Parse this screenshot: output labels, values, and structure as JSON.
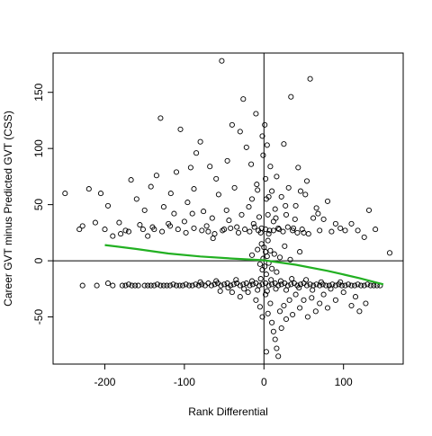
{
  "chart_data": {
    "type": "scatter",
    "title": "",
    "xlabel": "Rank Differential",
    "ylabel": "Career GVT minus Predicted GVT (CSS)",
    "xlim": [
      -265,
      175
    ],
    "ylim": [
      -92,
      185
    ],
    "xticks": [
      -200,
      -100,
      0,
      100
    ],
    "yticks": [
      -50,
      0,
      50,
      100,
      150
    ],
    "xtick_labels": [
      "-200",
      "-100",
      "0",
      "100"
    ],
    "ytick_labels": [
      "-50",
      "0",
      "50",
      "100",
      "150"
    ],
    "reference_lines": {
      "x": 0,
      "y": 0
    },
    "grid": false,
    "legend": "none",
    "point_style": "open circle",
    "point_color": "#000000",
    "trend_color": "#22b022",
    "series": [
      {
        "type": "scatter",
        "points": [
          [
            -250,
            60
          ],
          [
            -232,
            28
          ],
          [
            -228,
            31
          ],
          [
            -220,
            64
          ],
          [
            -212,
            34
          ],
          [
            -205,
            60
          ],
          [
            -200,
            28
          ],
          [
            -196,
            49
          ],
          [
            -190,
            22
          ],
          [
            -182,
            34
          ],
          [
            -174,
            27
          ],
          [
            -167,
            72
          ],
          [
            -160,
            55
          ],
          [
            -156,
            32
          ],
          [
            -150,
            45
          ],
          [
            -146,
            22
          ],
          [
            -142,
            66
          ],
          [
            -138,
            28
          ],
          [
            -135,
            76
          ],
          [
            -130,
            127
          ],
          [
            -126,
            48
          ],
          [
            -120,
            33
          ],
          [
            -117,
            60
          ],
          [
            -113,
            42
          ],
          [
            -110,
            79
          ],
          [
            -105,
            117
          ],
          [
            -100,
            35
          ],
          [
            -96,
            52
          ],
          [
            -92,
            83
          ],
          [
            -88,
            64
          ],
          [
            -85,
            96
          ],
          [
            -80,
            106
          ],
          [
            -76,
            44
          ],
          [
            -72,
            31
          ],
          [
            -68,
            84
          ],
          [
            -64,
            20
          ],
          [
            -60,
            73
          ],
          [
            -57,
            59
          ],
          [
            -53,
            178
          ],
          [
            -50,
            28
          ],
          [
            -46,
            89
          ],
          [
            -44,
            36
          ],
          [
            -40,
            121
          ],
          [
            -37,
            65
          ],
          [
            -34,
            30
          ],
          [
            -30,
            115
          ],
          [
            -26,
            144
          ],
          [
            -22,
            101
          ],
          [
            -19,
            48
          ],
          [
            -16,
            86
          ],
          [
            -13,
            33
          ],
          [
            -10,
            131
          ],
          [
            -8,
            63
          ],
          [
            -6,
            39
          ],
          [
            -4,
            25
          ],
          [
            -2,
            111
          ],
          [
            -1,
            94
          ],
          [
            1,
            121
          ],
          [
            2,
            73
          ],
          [
            3,
            55
          ],
          [
            4,
            103
          ],
          [
            5,
            41
          ],
          [
            7,
            27
          ],
          [
            8,
            84
          ],
          [
            10,
            62
          ],
          [
            12,
            35
          ],
          [
            14,
            46
          ],
          [
            16,
            75
          ],
          [
            19,
            28
          ],
          [
            22,
            57
          ],
          [
            25,
            104
          ],
          [
            28,
            41
          ],
          [
            31,
            65
          ],
          [
            34,
            146
          ],
          [
            37,
            29
          ],
          [
            40,
            49
          ],
          [
            43,
            83
          ],
          [
            46,
            62
          ],
          [
            50,
            25
          ],
          [
            54,
            71
          ],
          [
            58,
            162
          ],
          [
            62,
            38
          ],
          [
            66,
            47
          ],
          [
            70,
            27
          ],
          [
            75,
            37
          ],
          [
            80,
            53
          ],
          [
            85,
            26
          ],
          [
            90,
            33
          ],
          [
            96,
            29
          ],
          [
            102,
            27
          ],
          [
            110,
            33
          ],
          [
            118,
            27
          ],
          [
            126,
            21
          ],
          [
            132,
            45
          ],
          [
            140,
            28
          ],
          [
            158,
            7
          ],
          [
            -180,
            24
          ],
          [
            -170,
            26
          ],
          [
            -152,
            28
          ],
          [
            -140,
            30
          ],
          [
            -128,
            26
          ],
          [
            -118,
            31
          ],
          [
            -108,
            28
          ],
          [
            -98,
            25
          ],
          [
            -88,
            29
          ],
          [
            -78,
            27
          ],
          [
            -70,
            26
          ],
          [
            -62,
            24
          ],
          [
            -52,
            27
          ],
          [
            -42,
            29
          ],
          [
            -32,
            25
          ],
          [
            -24,
            28
          ],
          [
            -18,
            26
          ],
          [
            -12,
            30
          ],
          [
            -7,
            27
          ],
          [
            -3,
            29
          ],
          [
            2,
            28
          ],
          [
            6,
            24
          ],
          [
            12,
            27
          ],
          [
            18,
            29
          ],
          [
            24,
            26
          ],
          [
            30,
            30
          ],
          [
            36,
            27
          ],
          [
            42,
            25
          ],
          [
            48,
            28
          ],
          [
            56,
            24
          ],
          [
            -90,
            42
          ],
          [
            -65,
            38
          ],
          [
            -47,
            45
          ],
          [
            -28,
            41
          ],
          [
            -15,
            55
          ],
          [
            -9,
            68
          ],
          [
            6,
            57
          ],
          [
            15,
            38
          ],
          [
            27,
            49
          ],
          [
            39,
            37
          ],
          [
            52,
            59
          ],
          [
            68,
            42
          ],
          [
            -15,
            5
          ],
          [
            -8,
            10
          ],
          [
            -5,
            -3
          ],
          [
            -3,
            15
          ],
          [
            -2,
            -8
          ],
          [
            -1,
            2
          ],
          [
            0,
            12
          ],
          [
            1,
            -5
          ],
          [
            2,
            8
          ],
          [
            3,
            -12
          ],
          [
            4,
            4
          ],
          [
            5,
            18
          ],
          [
            6,
            -2
          ],
          [
            8,
            9
          ],
          [
            10,
            -7
          ],
          [
            13,
            6
          ],
          [
            16,
            -10
          ],
          [
            20,
            3
          ],
          [
            26,
            13
          ],
          [
            33,
            1
          ],
          [
            45,
            8
          ],
          [
            -228,
            -22
          ],
          [
            -210,
            -22
          ],
          [
            -196,
            -20
          ],
          [
            -190,
            -22
          ],
          [
            -178,
            -22
          ],
          [
            -174,
            -22
          ],
          [
            -170,
            -21
          ],
          [
            -166,
            -22
          ],
          [
            -162,
            -22
          ],
          [
            -158,
            -22
          ],
          [
            -150,
            -22
          ],
          [
            -146,
            -22
          ],
          [
            -142,
            -22
          ],
          [
            -138,
            -22
          ],
          [
            -134,
            -21
          ],
          [
            -130,
            -22
          ],
          [
            -126,
            -22
          ],
          [
            -122,
            -22
          ],
          [
            -118,
            -22
          ],
          [
            -114,
            -21
          ],
          [
            -110,
            -22
          ],
          [
            -106,
            -22
          ],
          [
            -102,
            -22
          ],
          [
            -98,
            -21
          ],
          [
            -94,
            -22
          ],
          [
            -90,
            -22
          ],
          [
            -86,
            -21
          ],
          [
            -82,
            -22
          ],
          [
            -78,
            -21
          ],
          [
            -74,
            -22
          ],
          [
            -70,
            -20
          ],
          [
            -66,
            -22
          ],
          [
            -62,
            -21
          ],
          [
            -58,
            -20
          ],
          [
            -54,
            -22
          ],
          [
            -50,
            -21
          ],
          [
            -46,
            -20
          ],
          [
            -42,
            -22
          ],
          [
            -38,
            -21
          ],
          [
            -34,
            -20
          ],
          [
            -30,
            -22
          ],
          [
            -26,
            -21
          ],
          [
            -22,
            -20
          ],
          [
            -18,
            -22
          ],
          [
            -14,
            -21
          ],
          [
            -10,
            -20
          ],
          [
            -6,
            -22
          ],
          [
            -2,
            -21
          ],
          [
            2,
            -20
          ],
          [
            6,
            -22
          ],
          [
            10,
            -21
          ],
          [
            14,
            -20
          ],
          [
            18,
            -22
          ],
          [
            22,
            -21
          ],
          [
            26,
            -20
          ],
          [
            30,
            -22
          ],
          [
            34,
            -21
          ],
          [
            38,
            -20
          ],
          [
            42,
            -22
          ],
          [
            46,
            -21
          ],
          [
            50,
            -20
          ],
          [
            54,
            -22
          ],
          [
            58,
            -21
          ],
          [
            62,
            -22
          ],
          [
            66,
            -21
          ],
          [
            70,
            -22
          ],
          [
            74,
            -21
          ],
          [
            78,
            -22
          ],
          [
            82,
            -22
          ],
          [
            86,
            -21
          ],
          [
            90,
            -22
          ],
          [
            94,
            -21
          ],
          [
            98,
            -22
          ],
          [
            102,
            -22
          ],
          [
            106,
            -21
          ],
          [
            110,
            -22
          ],
          [
            114,
            -22
          ],
          [
            118,
            -21
          ],
          [
            122,
            -22
          ],
          [
            126,
            -22
          ],
          [
            130,
            -21
          ],
          [
            134,
            -22
          ],
          [
            138,
            -22
          ],
          [
            142,
            -22
          ],
          [
            146,
            -22
          ],
          [
            -80,
            -19
          ],
          [
            -60,
            -18
          ],
          [
            -45,
            -24
          ],
          [
            -35,
            -17
          ],
          [
            -25,
            -25
          ],
          [
            -15,
            -18
          ],
          [
            -8,
            -26
          ],
          [
            -4,
            -16
          ],
          [
            4,
            -27
          ],
          [
            9,
            -17
          ],
          [
            15,
            -25
          ],
          [
            21,
            -18
          ],
          [
            28,
            -26
          ],
          [
            35,
            -16
          ],
          [
            44,
            -24
          ],
          [
            53,
            -17
          ],
          [
            61,
            -26
          ],
          [
            72,
            -19
          ],
          [
            84,
            -25
          ],
          [
            96,
            -19
          ],
          [
            -30,
            -32
          ],
          [
            -20,
            -28
          ],
          [
            -10,
            -35
          ],
          [
            -5,
            -41
          ],
          [
            -2,
            -50
          ],
          [
            2,
            -30
          ],
          [
            5,
            -47
          ],
          [
            8,
            -38
          ],
          [
            10,
            -55
          ],
          [
            12,
            -63
          ],
          [
            14,
            -70
          ],
          [
            16,
            -78
          ],
          [
            18,
            -85
          ],
          [
            20,
            -45
          ],
          [
            22,
            -60
          ],
          [
            25,
            -40
          ],
          [
            28,
            -52
          ],
          [
            32,
            -35
          ],
          [
            36,
            -48
          ],
          [
            40,
            -30
          ],
          [
            45,
            -42
          ],
          [
            50,
            -35
          ],
          [
            55,
            -50
          ],
          [
            60,
            -33
          ],
          [
            65,
            -45
          ],
          [
            70,
            -38
          ],
          [
            75,
            -30
          ],
          [
            80,
            -42
          ],
          [
            90,
            -35
          ],
          [
            100,
            -28
          ],
          [
            110,
            -40
          ],
          [
            115,
            -32
          ],
          [
            120,
            -45
          ],
          [
            128,
            -38
          ],
          [
            -40,
            -28
          ],
          [
            -55,
            -27
          ],
          [
            3,
            -81
          ]
        ]
      },
      {
        "type": "line",
        "name": "",
        "x": [
          -200,
          -160,
          -120,
          -80,
          -40,
          0,
          40,
          80,
          120,
          150
        ],
        "y": [
          14,
          10.5,
          6.5,
          3.8,
          2,
          0.5,
          -3.5,
          -9,
          -15.5,
          -21
        ]
      }
    ]
  }
}
